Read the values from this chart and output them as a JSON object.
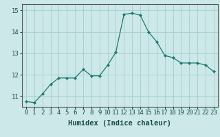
{
  "x": [
    0,
    1,
    2,
    3,
    4,
    5,
    6,
    7,
    8,
    9,
    10,
    11,
    12,
    13,
    14,
    15,
    16,
    17,
    18,
    19,
    20,
    21,
    22,
    23
  ],
  "y": [
    10.75,
    10.7,
    11.1,
    11.55,
    11.85,
    11.85,
    11.85,
    12.25,
    11.95,
    11.95,
    12.45,
    13.05,
    14.82,
    14.88,
    14.78,
    14.0,
    13.55,
    12.9,
    12.8,
    12.55,
    12.55,
    12.55,
    12.45,
    12.15
  ],
  "xlabel": "Humidex (Indice chaleur)",
  "ylim": [
    10.5,
    15.3
  ],
  "xlim": [
    -0.5,
    23.5
  ],
  "yticks": [
    11,
    12,
    13,
    14,
    15
  ],
  "xticks": [
    0,
    1,
    2,
    3,
    4,
    5,
    6,
    7,
    8,
    9,
    10,
    11,
    12,
    13,
    14,
    15,
    16,
    17,
    18,
    19,
    20,
    21,
    22,
    23
  ],
  "line_color": "#1a7a6e",
  "marker_color": "#1a7a6e",
  "bg_color": "#cce8e8",
  "grid_color": "#aad0d0",
  "tick_label_fontsize": 6.5,
  "xlabel_fontsize": 7.5
}
